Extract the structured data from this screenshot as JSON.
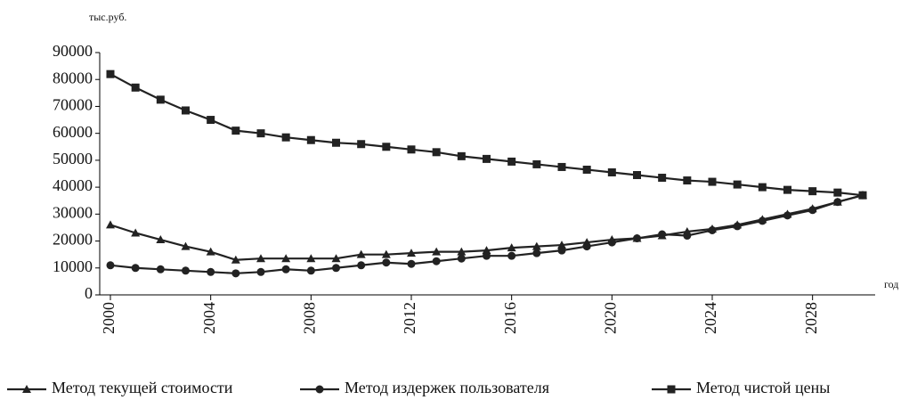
{
  "chart_data": {
    "type": "line",
    "y_label": "тыс.руб.",
    "x_label": "год",
    "x": [
      2000,
      2001,
      2002,
      2003,
      2004,
      2005,
      2006,
      2007,
      2008,
      2009,
      2010,
      2011,
      2012,
      2013,
      2014,
      2015,
      2016,
      2017,
      2018,
      2019,
      2020,
      2021,
      2022,
      2023,
      2024,
      2025,
      2026,
      2027,
      2028,
      2029,
      2030
    ],
    "xlim": [
      2000,
      2030
    ],
    "xticks": [
      2000,
      2004,
      2008,
      2012,
      2016,
      2020,
      2024,
      2028
    ],
    "ylim": [
      0,
      90000
    ],
    "yticks": [
      0,
      10000,
      20000,
      30000,
      40000,
      50000,
      60000,
      70000,
      80000,
      90000
    ],
    "legend": "bottom",
    "series": [
      {
        "name": "Метод текущей стоимости",
        "color": "#222222",
        "marker": "triangle",
        "values": [
          26000,
          23000,
          20500,
          18000,
          16000,
          13000,
          13500,
          13500,
          13500,
          13500,
          15000,
          15000,
          15500,
          16000,
          16000,
          16500,
          17500,
          18000,
          18500,
          19500,
          20500,
          21000,
          22000,
          23500,
          24500,
          26000,
          28000,
          30000,
          32000,
          34500,
          37000
        ]
      },
      {
        "name": "Метод издержек пользователя",
        "color": "#222222",
        "marker": "circle",
        "values": [
          11000,
          10000,
          9500,
          9000,
          8500,
          8000,
          8500,
          9500,
          9000,
          10000,
          11000,
          12000,
          11500,
          12500,
          13500,
          14500,
          14500,
          15500,
          16500,
          18000,
          19500,
          21000,
          22500,
          22000,
          24000,
          25500,
          27500,
          29500,
          31500,
          34500,
          37000
        ]
      },
      {
        "name": "Метод чистой цены",
        "color": "#222222",
        "marker": "square",
        "values": [
          82000,
          77000,
          72500,
          68500,
          65000,
          61000,
          60000,
          58500,
          57500,
          56500,
          56000,
          55000,
          54000,
          53000,
          51500,
          50500,
          49500,
          48500,
          47500,
          46500,
          45500,
          44500,
          43500,
          42500,
          42000,
          41000,
          40000,
          39000,
          38500,
          38000,
          37000
        ]
      }
    ]
  }
}
